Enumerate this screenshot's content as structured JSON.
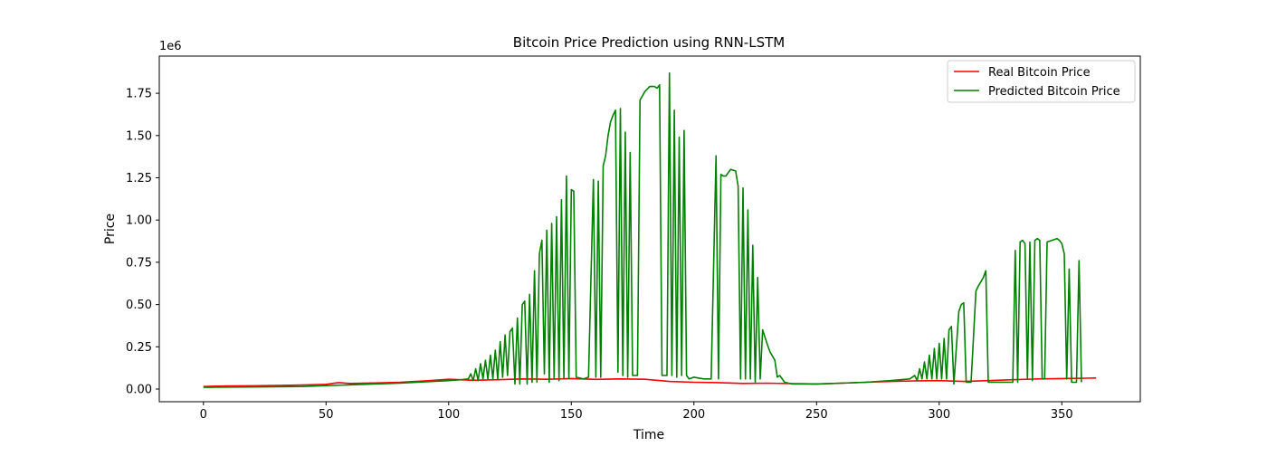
{
  "chart_data": {
    "type": "line",
    "title": "Bitcoin Price Prediction using RNN-LSTM",
    "xlabel": "Time",
    "ylabel": "Price",
    "y_offset_text": "1e6",
    "xlim": [
      -18,
      382
    ],
    "ylim": [
      -75000,
      1970000
    ],
    "x_ticks": [
      0,
      50,
      100,
      150,
      200,
      250,
      300,
      350
    ],
    "x_tick_labels": [
      "0",
      "50",
      "100",
      "150",
      "200",
      "250",
      "300",
      "350"
    ],
    "y_ticks": [
      0,
      250000,
      500000,
      750000,
      1000000,
      1250000,
      1500000,
      1750000
    ],
    "y_tick_labels": [
      "0.00",
      "0.25",
      "0.50",
      "0.75",
      "1.00",
      "1.25",
      "1.50",
      "1.75"
    ],
    "grid": false,
    "legend_position": "top-right",
    "series": [
      {
        "name": "Real Bitcoin Price",
        "color": "#ff0000",
        "points": [
          [
            0,
            15000
          ],
          [
            10,
            18000
          ],
          [
            20,
            19000
          ],
          [
            30,
            21000
          ],
          [
            40,
            24000
          ],
          [
            50,
            28000
          ],
          [
            55,
            38000
          ],
          [
            60,
            33000
          ],
          [
            70,
            36000
          ],
          [
            80,
            40000
          ],
          [
            90,
            48000
          ],
          [
            100,
            58000
          ],
          [
            110,
            52000
          ],
          [
            120,
            55000
          ],
          [
            130,
            60000
          ],
          [
            140,
            58000
          ],
          [
            150,
            62000
          ],
          [
            160,
            57000
          ],
          [
            170,
            60000
          ],
          [
            180,
            58000
          ],
          [
            190,
            45000
          ],
          [
            200,
            40000
          ],
          [
            210,
            38000
          ],
          [
            220,
            33000
          ],
          [
            230,
            35000
          ],
          [
            240,
            32000
          ],
          [
            250,
            30000
          ],
          [
            260,
            35000
          ],
          [
            270,
            40000
          ],
          [
            280,
            45000
          ],
          [
            290,
            48000
          ],
          [
            300,
            50000
          ],
          [
            310,
            45000
          ],
          [
            320,
            50000
          ],
          [
            330,
            55000
          ],
          [
            340,
            60000
          ],
          [
            350,
            62000
          ],
          [
            360,
            64000
          ],
          [
            364,
            65000
          ]
        ]
      },
      {
        "name": "Predicted Bitcoin Price",
        "color": "#008000",
        "points": [
          [
            0,
            10000
          ],
          [
            20,
            12000
          ],
          [
            40,
            15000
          ],
          [
            60,
            25000
          ],
          [
            80,
            35000
          ],
          [
            100,
            50000
          ],
          [
            105,
            55000
          ],
          [
            108,
            60000
          ],
          [
            109,
            90000
          ],
          [
            110,
            50000
          ],
          [
            111,
            120000
          ],
          [
            112,
            50000
          ],
          [
            113,
            150000
          ],
          [
            114,
            60000
          ],
          [
            115,
            170000
          ],
          [
            116,
            60000
          ],
          [
            117,
            200000
          ],
          [
            118,
            60000
          ],
          [
            119,
            230000
          ],
          [
            120,
            60000
          ],
          [
            121,
            280000
          ],
          [
            122,
            70000
          ],
          [
            123,
            320000
          ],
          [
            124,
            80000
          ],
          [
            125,
            340000
          ],
          [
            126,
            360000
          ],
          [
            127,
            30000
          ],
          [
            128,
            420000
          ],
          [
            129,
            30000
          ],
          [
            130,
            500000
          ],
          [
            131,
            520000
          ],
          [
            132,
            30000
          ],
          [
            133,
            560000
          ],
          [
            134,
            40000
          ],
          [
            135,
            700000
          ],
          [
            136,
            40000
          ],
          [
            137,
            800000
          ],
          [
            138,
            880000
          ],
          [
            139,
            90000
          ],
          [
            140,
            940000
          ],
          [
            141,
            40000
          ],
          [
            142,
            980000
          ],
          [
            143,
            60000
          ],
          [
            144,
            1020000
          ],
          [
            145,
            50000
          ],
          [
            146,
            1120000
          ],
          [
            147,
            60000
          ],
          [
            148,
            1260000
          ],
          [
            149,
            60000
          ],
          [
            150,
            1180000
          ],
          [
            151,
            1170000
          ],
          [
            152,
            70000
          ],
          [
            155,
            60000
          ],
          [
            157,
            70000
          ],
          [
            159,
            1240000
          ],
          [
            160,
            70000
          ],
          [
            161,
            1230000
          ],
          [
            162,
            70000
          ],
          [
            163,
            1320000
          ],
          [
            164,
            1380000
          ],
          [
            165,
            1500000
          ],
          [
            166,
            1580000
          ],
          [
            167,
            1620000
          ],
          [
            168,
            1650000
          ],
          [
            169,
            100000
          ],
          [
            170,
            1660000
          ],
          [
            171,
            80000
          ],
          [
            172,
            1520000
          ],
          [
            173,
            70000
          ],
          [
            174,
            1400000
          ],
          [
            175,
            80000
          ],
          [
            177,
            80000
          ],
          [
            178,
            1710000
          ],
          [
            180,
            1760000
          ],
          [
            182,
            1790000
          ],
          [
            184,
            1790000
          ],
          [
            185,
            1780000
          ],
          [
            186,
            1800000
          ],
          [
            187,
            80000
          ],
          [
            189,
            80000
          ],
          [
            190,
            1870000
          ],
          [
            191,
            80000
          ],
          [
            192,
            1650000
          ],
          [
            193,
            70000
          ],
          [
            194,
            1490000
          ],
          [
            195,
            80000
          ],
          [
            196,
            1530000
          ],
          [
            197,
            80000
          ],
          [
            198,
            60000
          ],
          [
            200,
            70000
          ],
          [
            204,
            60000
          ],
          [
            207,
            60000
          ],
          [
            209,
            1380000
          ],
          [
            210,
            60000
          ],
          [
            211,
            1270000
          ],
          [
            212,
            1260000
          ],
          [
            213,
            1260000
          ],
          [
            215,
            1300000
          ],
          [
            217,
            1290000
          ],
          [
            218,
            1200000
          ],
          [
            219,
            60000
          ],
          [
            220,
            1190000
          ],
          [
            221,
            60000
          ],
          [
            222,
            1060000
          ],
          [
            223,
            60000
          ],
          [
            224,
            850000
          ],
          [
            225,
            40000
          ],
          [
            226,
            660000
          ],
          [
            227,
            60000
          ],
          [
            228,
            350000
          ],
          [
            230,
            260000
          ],
          [
            231,
            220000
          ],
          [
            233,
            170000
          ],
          [
            234,
            70000
          ],
          [
            235,
            80000
          ],
          [
            237,
            40000
          ],
          [
            240,
            30000
          ],
          [
            250,
            30000
          ],
          [
            260,
            35000
          ],
          [
            270,
            40000
          ],
          [
            280,
            50000
          ],
          [
            288,
            60000
          ],
          [
            290,
            80000
          ],
          [
            291,
            50000
          ],
          [
            292,
            120000
          ],
          [
            293,
            60000
          ],
          [
            294,
            160000
          ],
          [
            295,
            60000
          ],
          [
            296,
            200000
          ],
          [
            297,
            60000
          ],
          [
            298,
            240000
          ],
          [
            299,
            60000
          ],
          [
            300,
            270000
          ],
          [
            301,
            60000
          ],
          [
            302,
            300000
          ],
          [
            303,
            60000
          ],
          [
            304,
            350000
          ],
          [
            305,
            370000
          ],
          [
            306,
            30000
          ],
          [
            308,
            460000
          ],
          [
            309,
            500000
          ],
          [
            310,
            510000
          ],
          [
            311,
            40000
          ],
          [
            313,
            40000
          ],
          [
            315,
            580000
          ],
          [
            316,
            610000
          ],
          [
            318,
            660000
          ],
          [
            319,
            700000
          ],
          [
            320,
            40000
          ],
          [
            330,
            40000
          ],
          [
            331,
            820000
          ],
          [
            332,
            40000
          ],
          [
            333,
            870000
          ],
          [
            334,
            880000
          ],
          [
            335,
            860000
          ],
          [
            336,
            60000
          ],
          [
            337,
            870000
          ],
          [
            338,
            50000
          ],
          [
            339,
            880000
          ],
          [
            340,
            890000
          ],
          [
            341,
            880000
          ],
          [
            342,
            60000
          ],
          [
            343,
            60000
          ],
          [
            344,
            870000
          ],
          [
            346,
            880000
          ],
          [
            348,
            890000
          ],
          [
            349,
            880000
          ],
          [
            350,
            860000
          ],
          [
            351,
            800000
          ],
          [
            352,
            60000
          ],
          [
            353,
            710000
          ],
          [
            354,
            40000
          ],
          [
            356,
            40000
          ],
          [
            357,
            760000
          ],
          [
            358,
            40000
          ]
        ]
      }
    ]
  }
}
